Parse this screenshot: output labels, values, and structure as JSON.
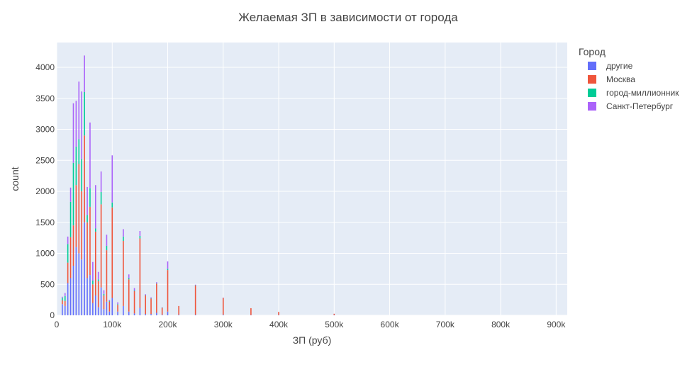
{
  "chart_data": {
    "type": "bar",
    "title": "Желаемая ЗП в зависимости от города",
    "xlabel": "ЗП (руб)",
    "ylabel": "count",
    "barmode": "stack",
    "xlim": [
      0,
      920000
    ],
    "ylim": [
      0,
      4400
    ],
    "x_ticks": [
      0,
      100000,
      200000,
      300000,
      400000,
      500000,
      600000,
      700000,
      800000,
      900000
    ],
    "x_tick_labels": [
      "0",
      "100k",
      "200k",
      "300k",
      "400k",
      "500k",
      "600k",
      "700k",
      "800k",
      "900k"
    ],
    "y_ticks": [
      0,
      500,
      1000,
      1500,
      2000,
      2500,
      3000,
      3500,
      4000
    ],
    "y_tick_labels": [
      "0",
      "500",
      "1000",
      "1500",
      "2000",
      "2500",
      "3000",
      "3500",
      "4000"
    ],
    "grid": true,
    "legend_title": "Город",
    "legend_position": "right",
    "bin_width": 2000,
    "x": [
      10000,
      15000,
      20000,
      25000,
      30000,
      35000,
      40000,
      45000,
      50000,
      55000,
      60000,
      65000,
      70000,
      75000,
      80000,
      85000,
      90000,
      95000,
      100000,
      110000,
      120000,
      130000,
      140000,
      150000,
      160000,
      170000,
      180000,
      190000,
      200000,
      220000,
      250000,
      300000,
      350000,
      400000,
      500000
    ],
    "series": [
      {
        "name": "другие",
        "color": "#636efa",
        "values": [
          180,
          150,
          520,
          600,
          800,
          1100,
          1000,
          900,
          1500,
          600,
          650,
          200,
          320,
          130,
          450,
          100,
          220,
          60,
          280,
          60,
          150,
          60,
          30,
          120,
          20,
          20,
          40,
          10,
          60,
          10,
          10,
          10,
          5,
          5,
          5
        ]
      },
      {
        "name": "Москва",
        "color": "#ef553b",
        "values": [
          60,
          80,
          330,
          660,
          650,
          1000,
          1440,
          1100,
          1400,
          900,
          1100,
          300,
          1030,
          420,
          1340,
          220,
          830,
          160,
          1460,
          110,
          1050,
          520,
          360,
          1120,
          300,
          250,
          470,
          110,
          670,
          140,
          470,
          270,
          110,
          50,
          20
        ]
      },
      {
        "name": "город-миллионник",
        "color": "#00cc96",
        "values": [
          40,
          80,
          300,
          570,
          1010,
          620,
          400,
          520,
          700,
          120,
          300,
          60,
          50,
          30,
          200,
          25,
          70,
          10,
          80,
          10,
          70,
          20,
          10,
          40,
          5,
          5,
          5,
          5,
          20,
          0,
          5,
          0,
          0,
          0,
          0
        ]
      },
      {
        "name": "Санкт-Петербург",
        "color": "#ab63fa",
        "values": [
          20,
          50,
          120,
          230,
          960,
          740,
          930,
          1090,
          590,
          450,
          1060,
          300,
          700,
          120,
          330,
          60,
          180,
          20,
          760,
          30,
          120,
          60,
          40,
          80,
          15,
          15,
          20,
          5,
          120,
          0,
          10,
          5,
          0,
          0,
          0
        ]
      }
    ]
  }
}
